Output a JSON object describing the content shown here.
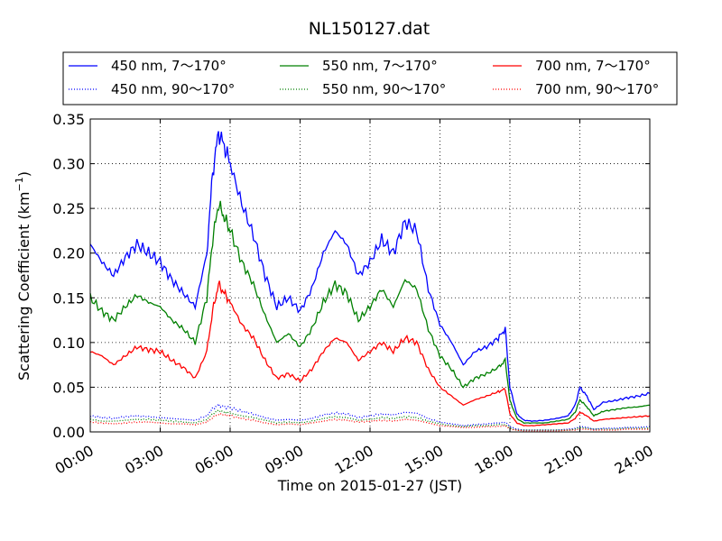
{
  "chart_data": {
    "type": "line",
    "title": "NL150127.dat",
    "xlabel": "Time on 2015-01-27 (JST)",
    "ylabel": "Scattering Coefficient (km",
    "ylabel_superscript": "−1",
    "ylabel_suffix": ")",
    "x_unit": "hours",
    "xlim": [
      0,
      24
    ],
    "ylim": [
      0,
      0.35
    ],
    "x_ticks": [
      0,
      3,
      6,
      9,
      12,
      15,
      18,
      21,
      24
    ],
    "x_tick_labels": [
      "00:00",
      "03:00",
      "06:00",
      "09:00",
      "12:00",
      "15:00",
      "18:00",
      "21:00",
      "24:00"
    ],
    "y_ticks": [
      0,
      0.05,
      0.1,
      0.15,
      0.2,
      0.25,
      0.3,
      0.35
    ],
    "y_tick_labels": [
      "0.00",
      "0.05",
      "0.10",
      "0.15",
      "0.20",
      "0.25",
      "0.30",
      "0.35"
    ],
    "grid": true,
    "legend_position": "top",
    "x": [
      0,
      0.5,
      1,
      1.5,
      2,
      2.5,
      3,
      3.5,
      4,
      4.5,
      5,
      5.25,
      5.5,
      5.75,
      6,
      6.5,
      7,
      7.5,
      8,
      8.5,
      9,
      9.5,
      10,
      10.5,
      11,
      11.5,
      12,
      12.5,
      13,
      13.5,
      14,
      14.5,
      15,
      15.5,
      16,
      16.5,
      17,
      17.5,
      17.8,
      18,
      18.3,
      18.6,
      19,
      19.5,
      20,
      20.5,
      20.8,
      21,
      21.3,
      21.6,
      22,
      22.5,
      23,
      23.5,
      24
    ],
    "series": [
      {
        "name": "450 nm, 7～170°",
        "color": "#0000ff",
        "style": "solid",
        "values": [
          0.21,
          0.19,
          0.175,
          0.195,
          0.21,
          0.2,
          0.19,
          0.17,
          0.155,
          0.14,
          0.2,
          0.29,
          0.335,
          0.32,
          0.3,
          0.255,
          0.22,
          0.175,
          0.14,
          0.15,
          0.135,
          0.16,
          0.2,
          0.225,
          0.21,
          0.175,
          0.19,
          0.215,
          0.2,
          0.235,
          0.225,
          0.16,
          0.12,
          0.1,
          0.075,
          0.09,
          0.095,
          0.105,
          0.115,
          0.05,
          0.02,
          0.013,
          0.012,
          0.013,
          0.015,
          0.018,
          0.03,
          0.05,
          0.04,
          0.025,
          0.033,
          0.035,
          0.038,
          0.04,
          0.043
        ]
      },
      {
        "name": "550 nm, 7～170°",
        "color": "#008000",
        "style": "solid",
        "values": [
          0.15,
          0.135,
          0.125,
          0.14,
          0.153,
          0.145,
          0.14,
          0.125,
          0.115,
          0.1,
          0.15,
          0.215,
          0.255,
          0.24,
          0.225,
          0.19,
          0.165,
          0.13,
          0.1,
          0.11,
          0.095,
          0.115,
          0.145,
          0.165,
          0.155,
          0.125,
          0.14,
          0.16,
          0.14,
          0.17,
          0.16,
          0.115,
          0.085,
          0.07,
          0.05,
          0.06,
          0.065,
          0.072,
          0.08,
          0.035,
          0.015,
          0.01,
          0.01,
          0.01,
          0.012,
          0.014,
          0.022,
          0.036,
          0.028,
          0.018,
          0.023,
          0.025,
          0.027,
          0.028,
          0.03
        ]
      },
      {
        "name": "700 nm, 7～170°",
        "color": "#ff0000",
        "style": "solid",
        "values": [
          0.09,
          0.085,
          0.075,
          0.085,
          0.095,
          0.092,
          0.09,
          0.08,
          0.072,
          0.06,
          0.09,
          0.135,
          0.165,
          0.155,
          0.145,
          0.12,
          0.105,
          0.08,
          0.06,
          0.065,
          0.057,
          0.07,
          0.09,
          0.105,
          0.1,
          0.08,
          0.09,
          0.1,
          0.09,
          0.105,
          0.1,
          0.07,
          0.05,
          0.04,
          0.03,
          0.036,
          0.04,
          0.045,
          0.048,
          0.02,
          0.01,
          0.007,
          0.007,
          0.008,
          0.009,
          0.01,
          0.015,
          0.022,
          0.018,
          0.012,
          0.014,
          0.015,
          0.016,
          0.017,
          0.018
        ]
      },
      {
        "name": "450 nm, 90～170°",
        "color": "#0000ff",
        "style": "dotted",
        "values": [
          0.018,
          0.016,
          0.015,
          0.017,
          0.018,
          0.017,
          0.016,
          0.015,
          0.014,
          0.013,
          0.018,
          0.026,
          0.03,
          0.028,
          0.027,
          0.023,
          0.02,
          0.016,
          0.013,
          0.014,
          0.013,
          0.015,
          0.019,
          0.021,
          0.02,
          0.016,
          0.018,
          0.02,
          0.019,
          0.022,
          0.021,
          0.015,
          0.011,
          0.009,
          0.007,
          0.008,
          0.009,
          0.01,
          0.011,
          0.006,
          0.003,
          0.002,
          0.002,
          0.002,
          0.002,
          0.003,
          0.004,
          0.006,
          0.005,
          0.003,
          0.004,
          0.004,
          0.005,
          0.005,
          0.006
        ]
      },
      {
        "name": "550 nm, 90～170°",
        "color": "#008000",
        "style": "dotted",
        "values": [
          0.014,
          0.012,
          0.012,
          0.013,
          0.014,
          0.014,
          0.013,
          0.012,
          0.011,
          0.01,
          0.014,
          0.02,
          0.024,
          0.022,
          0.021,
          0.018,
          0.016,
          0.013,
          0.01,
          0.011,
          0.01,
          0.012,
          0.015,
          0.017,
          0.016,
          0.013,
          0.014,
          0.016,
          0.015,
          0.017,
          0.016,
          0.012,
          0.009,
          0.007,
          0.006,
          0.007,
          0.007,
          0.008,
          0.008,
          0.004,
          0.002,
          0.002,
          0.002,
          0.002,
          0.002,
          0.002,
          0.003,
          0.005,
          0.004,
          0.003,
          0.003,
          0.003,
          0.004,
          0.004,
          0.004
        ]
      },
      {
        "name": "700 nm, 90～170°",
        "color": "#ff0000",
        "style": "dotted",
        "values": [
          0.011,
          0.01,
          0.009,
          0.01,
          0.011,
          0.011,
          0.01,
          0.009,
          0.009,
          0.008,
          0.011,
          0.016,
          0.02,
          0.019,
          0.018,
          0.015,
          0.013,
          0.01,
          0.008,
          0.009,
          0.008,
          0.01,
          0.012,
          0.014,
          0.013,
          0.011,
          0.012,
          0.013,
          0.012,
          0.014,
          0.013,
          0.01,
          0.007,
          0.006,
          0.005,
          0.005,
          0.006,
          0.006,
          0.007,
          0.003,
          0.002,
          0.001,
          0.001,
          0.001,
          0.001,
          0.002,
          0.002,
          0.003,
          0.003,
          0.002,
          0.002,
          0.002,
          0.003,
          0.003,
          0.003
        ]
      }
    ]
  }
}
